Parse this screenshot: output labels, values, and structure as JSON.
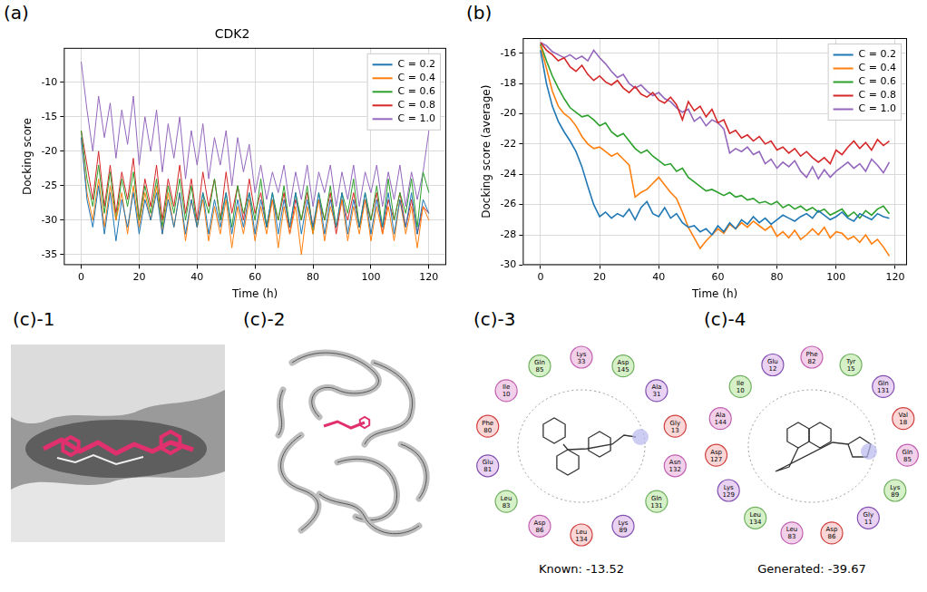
{
  "chart_data": [
    {
      "panel": "(a)",
      "type": "line",
      "title": "CDK2",
      "x_label": "Time (h)",
      "y_label": "Docking score",
      "x": [
        0,
        2,
        4,
        6,
        8,
        10,
        12,
        14,
        16,
        18,
        20,
        22,
        24,
        26,
        28,
        30,
        32,
        34,
        36,
        38,
        40,
        42,
        44,
        46,
        48,
        50,
        52,
        54,
        56,
        58,
        60,
        62,
        64,
        66,
        68,
        70,
        72,
        74,
        76,
        78,
        80,
        82,
        84,
        86,
        88,
        90,
        92,
        94,
        96,
        98,
        100,
        102,
        104,
        106,
        108,
        110,
        112,
        114,
        116,
        118,
        120
      ],
      "series": [
        {
          "name": "C = 0.2",
          "color": "#1f77b4",
          "values": [
            -18,
            -27,
            -31,
            -25,
            -32,
            -26,
            -33,
            -27,
            -31,
            -26,
            -32,
            -27,
            -30,
            -26,
            -32,
            -27,
            -31,
            -26,
            -32,
            -27,
            -31,
            -26,
            -32,
            -27,
            -31,
            -26,
            -32,
            -27,
            -31,
            -26,
            -32,
            -27,
            -31,
            -26,
            -32,
            -27,
            -31,
            -26,
            -32,
            -27,
            -31,
            -26,
            -32,
            -27,
            -31,
            -26,
            -32,
            -27,
            -31,
            -26,
            -32,
            -27,
            -31,
            -26,
            -32,
            -27,
            -31,
            -26,
            -32,
            -27,
            -29
          ]
        },
        {
          "name": "C = 0.4",
          "color": "#ff7f0e",
          "values": [
            -18,
            -26,
            -30,
            -24,
            -31,
            -25,
            -30,
            -26,
            -32,
            -25,
            -31,
            -26,
            -30,
            -25,
            -32,
            -26,
            -31,
            -26,
            -33,
            -27,
            -31,
            -27,
            -33,
            -28,
            -32,
            -27,
            -34,
            -28,
            -32,
            -27,
            -33,
            -28,
            -32,
            -27,
            -34,
            -28,
            -32,
            -28,
            -35,
            -28,
            -32,
            -27,
            -33,
            -28,
            -31,
            -27,
            -33,
            -28,
            -32,
            -27,
            -33,
            -28,
            -32,
            -28,
            -33,
            -27,
            -32,
            -28,
            -34,
            -28,
            -30
          ]
        },
        {
          "name": "C = 0.6",
          "color": "#2ca02c",
          "values": [
            -17,
            -24,
            -28,
            -22,
            -29,
            -23,
            -30,
            -24,
            -28,
            -23,
            -30,
            -25,
            -29,
            -24,
            -31,
            -25,
            -29,
            -24,
            -30,
            -25,
            -31,
            -26,
            -29,
            -24,
            -30,
            -26,
            -31,
            -25,
            -29,
            -26,
            -30,
            -24,
            -31,
            -26,
            -30,
            -25,
            -31,
            -26,
            -30,
            -25,
            -32,
            -26,
            -30,
            -25,
            -31,
            -26,
            -29,
            -24,
            -31,
            -26,
            -30,
            -25,
            -31,
            -24,
            -30,
            -26,
            -29,
            -24,
            -31,
            -23,
            -26
          ]
        },
        {
          "name": "C = 0.8",
          "color": "#d62728",
          "values": [
            -17,
            -22,
            -27,
            -20,
            -28,
            -22,
            -29,
            -23,
            -27,
            -21,
            -30,
            -24,
            -28,
            -22,
            -30,
            -24,
            -28,
            -22,
            -29,
            -24,
            -30,
            -23,
            -28,
            -24,
            -30,
            -23,
            -29,
            -25,
            -30,
            -24,
            -29,
            -26,
            -31,
            -27,
            -30,
            -26,
            -32,
            -27,
            -30,
            -26,
            -31,
            -27,
            -30,
            -26,
            -32,
            -27,
            -30,
            -26,
            -31,
            -27,
            -30,
            -26,
            -32,
            -27,
            -30,
            -26,
            -31,
            -27,
            -32,
            -28,
            -29
          ]
        },
        {
          "name": "C = 1.0",
          "color": "#9467bd",
          "values": [
            -7,
            -14,
            -20,
            -12,
            -18,
            -13,
            -21,
            -14,
            -19,
            -12,
            -22,
            -15,
            -20,
            -14,
            -23,
            -16,
            -21,
            -15,
            -24,
            -17,
            -22,
            -16,
            -24,
            -18,
            -22,
            -17,
            -25,
            -18,
            -23,
            -19,
            -26,
            -22,
            -27,
            -23,
            -26,
            -22,
            -28,
            -23,
            -27,
            -22,
            -28,
            -23,
            -26,
            -22,
            -28,
            -23,
            -27,
            -22,
            -28,
            -23,
            -26,
            -22,
            -28,
            -23,
            -27,
            -22,
            -28,
            -23,
            -27,
            -23,
            -17
          ]
        }
      ],
      "xlim": [
        -6,
        126
      ],
      "xticks": [
        0,
        20,
        40,
        60,
        80,
        100,
        120
      ],
      "ylim": [
        -36.5,
        -5
      ],
      "yticks": [
        -35,
        -30,
        -25,
        -20,
        -15,
        -10
      ],
      "grid": true,
      "legend": "upper right"
    },
    {
      "panel": "(b)",
      "type": "line",
      "x_label": "Time (h)",
      "y_label": "Docking score (average)",
      "x": [
        0,
        2,
        4,
        6,
        8,
        10,
        12,
        14,
        16,
        18,
        20,
        22,
        24,
        26,
        28,
        30,
        32,
        34,
        36,
        38,
        40,
        42,
        44,
        46,
        48,
        50,
        52,
        54,
        56,
        58,
        60,
        62,
        64,
        66,
        68,
        70,
        72,
        74,
        76,
        78,
        80,
        82,
        84,
        86,
        88,
        90,
        92,
        94,
        96,
        98,
        100,
        102,
        104,
        106,
        108,
        110,
        112,
        114,
        116,
        118
      ],
      "series": [
        {
          "name": "C = 0.2",
          "color": "#1f77b4",
          "values": [
            -15.8,
            -18,
            -19.5,
            -20.5,
            -21.2,
            -21.8,
            -22.5,
            -23.5,
            -24.8,
            -26,
            -26.8,
            -26.5,
            -26.9,
            -26.6,
            -26.8,
            -26.3,
            -27,
            -26.2,
            -25.8,
            -26.6,
            -26.8,
            -26.2,
            -26.9,
            -26.6,
            -27.2,
            -27.5,
            -27.4,
            -27.8,
            -27.6,
            -28,
            -27.4,
            -27.8,
            -27.2,
            -27.6,
            -27,
            -27.3,
            -26.8,
            -27.2,
            -26.9,
            -27.3,
            -27,
            -26.7,
            -26.9,
            -27.1,
            -26.8,
            -26.6,
            -26.9,
            -26.4,
            -26.7,
            -27,
            -26.8,
            -26.5,
            -26.9,
            -27.1,
            -26.6,
            -26.8,
            -27,
            -26.6,
            -26.8,
            -26.9
          ]
        },
        {
          "name": "C = 0.4",
          "color": "#ff7f0e",
          "values": [
            -15.5,
            -17,
            -18.5,
            -19.5,
            -20,
            -20.3,
            -20.8,
            -21.5,
            -22,
            -22.3,
            -22.2,
            -22.5,
            -22.8,
            -22.6,
            -23,
            -23.4,
            -25.5,
            -25.2,
            -25,
            -24.6,
            -24.2,
            -24.7,
            -25.2,
            -25.6,
            -26.5,
            -27.5,
            -28.2,
            -28.9,
            -28.4,
            -28,
            -27.6,
            -27.9,
            -27.3,
            -27.6,
            -27.2,
            -27.5,
            -27.1,
            -27.4,
            -27.7,
            -27.4,
            -28.1,
            -27.8,
            -28.2,
            -27.7,
            -28.3,
            -28,
            -27.6,
            -28,
            -27.5,
            -28.2,
            -27.8,
            -27.9,
            -28.3,
            -28.1,
            -28.5,
            -28,
            -28.6,
            -28.3,
            -28.8,
            -29.4
          ]
        },
        {
          "name": "C = 0.6",
          "color": "#2ca02c",
          "values": [
            -15.4,
            -16.5,
            -17.5,
            -18.3,
            -19,
            -19.6,
            -19.9,
            -20.2,
            -20.1,
            -20.4,
            -20.8,
            -20.6,
            -21.2,
            -21.5,
            -21.3,
            -21.8,
            -22.3,
            -22.6,
            -22.4,
            -22.8,
            -23.1,
            -23.4,
            -23.3,
            -23.8,
            -23.6,
            -24.2,
            -24.5,
            -24.8,
            -25.1,
            -25,
            -25.2,
            -25.4,
            -25.2,
            -25.5,
            -25.4,
            -25.7,
            -25.6,
            -25.9,
            -25.8,
            -26,
            -25.8,
            -26.2,
            -26,
            -26.3,
            -26.1,
            -26.4,
            -26.2,
            -26.5,
            -26.3,
            -26.7,
            -26.5,
            -26.3,
            -26.8,
            -26.5,
            -26.9,
            -26.4,
            -26.7,
            -26.3,
            -26.1,
            -26.6
          ]
        },
        {
          "name": "C = 0.8",
          "color": "#d62728",
          "values": [
            -15.3,
            -15.8,
            -16.1,
            -16.5,
            -16.3,
            -16.9,
            -17.2,
            -16.8,
            -17.4,
            -17.8,
            -17.5,
            -17.9,
            -18.1,
            -17.8,
            -18.3,
            -18.6,
            -18.2,
            -18.7,
            -18.9,
            -18.6,
            -19.1,
            -19.3,
            -18.9,
            -19.4,
            -20.4,
            -19.2,
            -19.8,
            -19.5,
            -20.2,
            -19.7,
            -20.6,
            -20.4,
            -21.3,
            -21.1,
            -21.6,
            -21.4,
            -21.8,
            -21.5,
            -22,
            -21.8,
            -22.4,
            -22.2,
            -22.6,
            -22.3,
            -22.8,
            -22.5,
            -22.9,
            -23.2,
            -22.9,
            -23.3,
            -22.4,
            -22.7,
            -22.2,
            -21.8,
            -22.3,
            -21.9,
            -22.4,
            -21.7,
            -22.1,
            -21.8
          ]
        },
        {
          "name": "C = 1.0",
          "color": "#9467bd",
          "values": [
            -15.3,
            -15.5,
            -15.9,
            -16.1,
            -16.3,
            -16.1,
            -16.4,
            -16.2,
            -16.5,
            -15.8,
            -16.3,
            -16.7,
            -17.2,
            -17.6,
            -17.4,
            -18,
            -18.3,
            -18.1,
            -18.5,
            -18.8,
            -18.6,
            -19,
            -19.2,
            -19.6,
            -19.9,
            -19.7,
            -20.5,
            -20.2,
            -20.8,
            -20.4,
            -20.6,
            -21,
            -22.6,
            -22.3,
            -22.5,
            -22.2,
            -22.7,
            -22.5,
            -23.3,
            -23,
            -23.6,
            -23.2,
            -23.5,
            -23.1,
            -23.8,
            -24.2,
            -23.5,
            -24.3,
            -23.7,
            -24.2,
            -23.8,
            -23.5,
            -23.2,
            -23.6,
            -23.3,
            -23.8,
            -23,
            -23.4,
            -23.9,
            -23.2
          ]
        }
      ],
      "xlim": [
        -6,
        124
      ],
      "xticks": [
        0,
        20,
        40,
        60,
        80,
        100,
        120
      ],
      "ylim": [
        -30,
        -15
      ],
      "yticks": [
        -30,
        -28,
        -26,
        -24,
        -22,
        -20,
        -18,
        -16
      ],
      "grid": true,
      "legend": "upper right"
    }
  ],
  "panels": [
    {
      "label": "(c)-1",
      "kind": "surface"
    },
    {
      "label": "(c)-2",
      "kind": "ribbon"
    },
    {
      "label": "(c)-3",
      "kind": "interaction",
      "caption": "Known: -13.52",
      "residues": [
        "Lys 33",
        "Asp 145",
        "Ala 31",
        "Gly 13",
        "Asn 132",
        "Gln 131",
        "Lys 89",
        "Leu 134",
        "Asp 86",
        "Leu 83",
        "Glu 81",
        "Phe 80",
        "Ile 10",
        "Gln 85"
      ]
    },
    {
      "label": "(c)-4",
      "kind": "interaction",
      "caption": "Generated: -39.67",
      "residues": [
        "Phe 82",
        "Tyr 15",
        "Gln 131",
        "Val 18",
        "Gln 85",
        "Lys 89",
        "Gly 11",
        "Asp 86",
        "Leu 83",
        "Leu 134",
        "Lys 129",
        "Asp 127",
        "Ala 144",
        "Ile 10",
        "Glu 12"
      ]
    }
  ]
}
